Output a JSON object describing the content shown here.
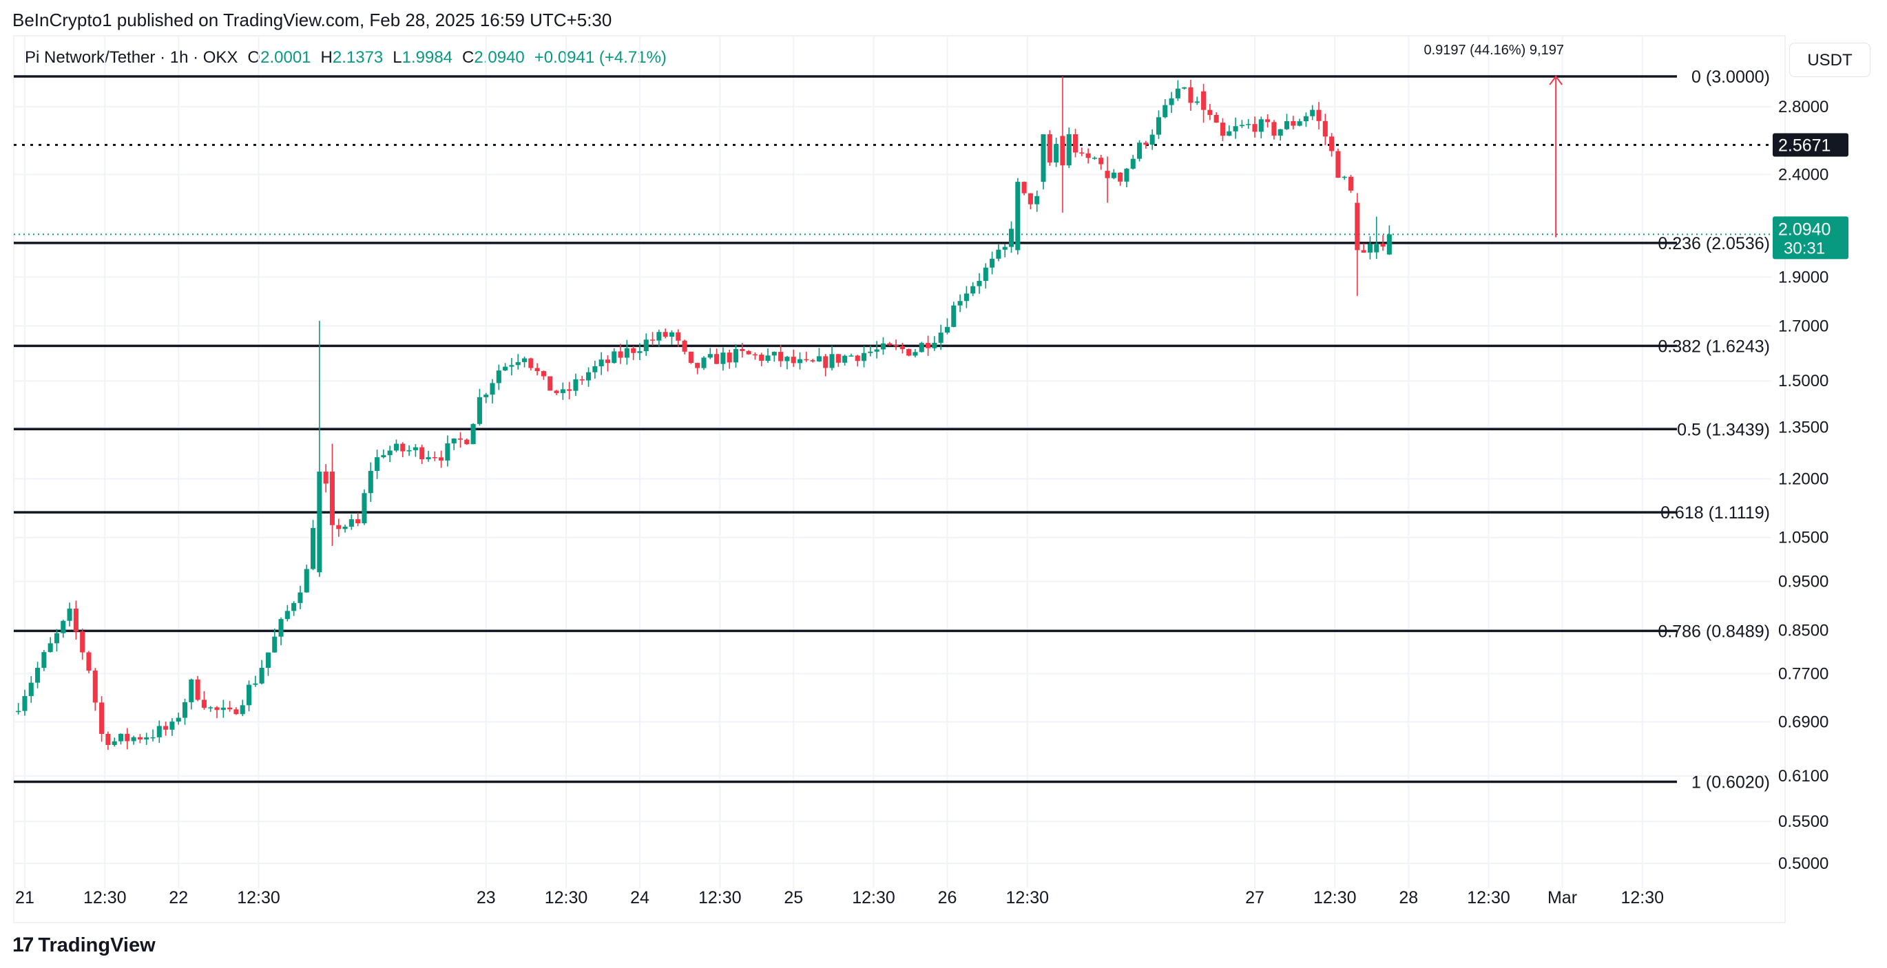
{
  "header": {
    "publisher": "BeInCrypto1 published on TradingView.com, Feb 28, 2025 16:59 UTC+5:30",
    "symbol": "Pi Network/Tether · 1h · OKX",
    "o_label": "O",
    "o_value": "2.0001",
    "h_label": "H",
    "h_value": "2.1373",
    "l_label": "L",
    "l_value": "1.9984",
    "c_label": "C",
    "c_value": "2.0940",
    "change": "+0.0941 (+4.71%)"
  },
  "currency_button": "USDT",
  "footer": {
    "brand": "TradingView",
    "logo_mark": "17"
  },
  "colors": {
    "up": "#089981",
    "down": "#f23645",
    "grid": "#f0f3fa",
    "line": "#131722",
    "last_price_bg": "#089981",
    "marker_bg": "#131722",
    "measure": "#f23645"
  },
  "chart_data": {
    "type": "candlestick",
    "scale": "log",
    "ylim": [
      0.48,
      3.25
    ],
    "y_ticks": [
      2.8,
      2.4,
      1.9,
      1.7,
      1.5,
      1.35,
      1.2,
      1.05,
      0.95,
      0.85,
      0.77,
      0.69,
      0.61,
      0.55,
      0.5
    ],
    "y_tick_labels": [
      "2.8000",
      "2.4000",
      "1.9000",
      "1.7000",
      "1.5000",
      "1.3500",
      "1.2000",
      "1.0500",
      "0.9500",
      "0.8500",
      "0.7700",
      "0.6900",
      "0.6100",
      "0.5500",
      "0.5000"
    ],
    "x_ticks": [
      {
        "label": "21",
        "t": 1
      },
      {
        "label": "12:30",
        "t": 13.5
      },
      {
        "label": "22",
        "t": 25
      },
      {
        "label": "12:30",
        "t": 37.5
      },
      {
        "label": "23",
        "t": 73
      },
      {
        "label": "12:30",
        "t": 85.5
      },
      {
        "label": "24",
        "t": 97
      },
      {
        "label": "12:30",
        "t": 109.5
      },
      {
        "label": "25",
        "t": 121
      },
      {
        "label": "12:30",
        "t": 133.5
      },
      {
        "label": "26",
        "t": 145
      },
      {
        "label": "12:30",
        "t": 157.5
      },
      {
        "label": "27",
        "t": 193
      },
      {
        "label": "12:30",
        "t": 205.5
      },
      {
        "label": "28",
        "t": 217
      },
      {
        "label": "12:30",
        "t": 229.5
      },
      {
        "label": "Mar",
        "t": 241
      },
      {
        "label": "12:30",
        "t": 253.5
      }
    ],
    "fib_levels": [
      {
        "ratio": "0",
        "value": 3.0,
        "label": "0 (3.0000)"
      },
      {
        "ratio": "0.236",
        "value": 2.0536,
        "label": "0.236 (2.0536)"
      },
      {
        "ratio": "0.382",
        "value": 1.6243,
        "label": "0.382 (1.6243)"
      },
      {
        "ratio": "0.5",
        "value": 1.3439,
        "label": "0.5 (1.3439)"
      },
      {
        "ratio": "0.618",
        "value": 1.1119,
        "label": "0.618 (1.1119)"
      },
      {
        "ratio": "0.786",
        "value": 0.8489,
        "label": "0.786 (0.8489)"
      },
      {
        "ratio": "1",
        "value": 0.602,
        "label": "1 (0.6020)"
      }
    ],
    "dotted_level": {
      "value": 2.5671,
      "label": "2.5671"
    },
    "last_price": {
      "value": 2.094,
      "label": "2.0940",
      "countdown": "30:31"
    },
    "measure": {
      "from": 2.08,
      "to": 3.0,
      "label": "0.9197 (44.16%) 9,197"
    },
    "anchors": [
      [
        0,
        0.72
      ],
      [
        4,
        0.8
      ],
      [
        8,
        0.88
      ],
      [
        11,
        0.78
      ],
      [
        13,
        0.67
      ],
      [
        15,
        0.66
      ],
      [
        20,
        0.67
      ],
      [
        24,
        0.68
      ],
      [
        27,
        0.75
      ],
      [
        30,
        0.71
      ],
      [
        33,
        0.7
      ],
      [
        37,
        0.76
      ],
      [
        41,
        0.86
      ],
      [
        45,
        0.97
      ],
      [
        47,
        1.22
      ],
      [
        50,
        1.08
      ],
      [
        53,
        1.08
      ],
      [
        55,
        1.23
      ],
      [
        57,
        1.28
      ],
      [
        61,
        1.28
      ],
      [
        66,
        1.27
      ],
      [
        70,
        1.32
      ],
      [
        72,
        1.44
      ],
      [
        75,
        1.54
      ],
      [
        79,
        1.6
      ],
      [
        82,
        1.49
      ],
      [
        85,
        1.45
      ],
      [
        89,
        1.53
      ],
      [
        94,
        1.59
      ],
      [
        98,
        1.64
      ],
      [
        102,
        1.67
      ],
      [
        105,
        1.54
      ],
      [
        109,
        1.58
      ],
      [
        113,
        1.59
      ],
      [
        118,
        1.58
      ],
      [
        123,
        1.55
      ],
      [
        128,
        1.58
      ],
      [
        132,
        1.6
      ],
      [
        136,
        1.61
      ],
      [
        140,
        1.61
      ],
      [
        144,
        1.68
      ],
      [
        147,
        1.82
      ],
      [
        150,
        1.9
      ],
      [
        154,
        2.02
      ],
      [
        156,
        2.28
      ],
      [
        159,
        2.26
      ],
      [
        163,
        2.68
      ],
      [
        166,
        2.48
      ],
      [
        169,
        2.49
      ],
      [
        172,
        2.39
      ],
      [
        175,
        2.55
      ],
      [
        178,
        2.71
      ],
      [
        181,
        2.91
      ],
      [
        185,
        2.78
      ],
      [
        188,
        2.6
      ],
      [
        190,
        2.66
      ],
      [
        193,
        2.69
      ],
      [
        196,
        2.65
      ],
      [
        199,
        2.7
      ],
      [
        202,
        2.78
      ],
      [
        204,
        2.62
      ],
      [
        206,
        2.42
      ],
      [
        208,
        2.3
      ],
      [
        210,
        2.0
      ],
      [
        212,
        2.05
      ],
      [
        214,
        2.09
      ]
    ],
    "overrides": {
      "47": {
        "o": 0.97,
        "h": 1.72,
        "l": 0.96,
        "c": 1.22
      },
      "49": {
        "o": 1.22,
        "h": 1.3,
        "l": 1.03,
        "c": 1.08
      },
      "156": {
        "o": 2.02,
        "h": 2.38,
        "l": 2.0,
        "c": 2.36
      },
      "160": {
        "o": 2.36,
        "h": 2.62,
        "l": 2.32,
        "c": 2.63
      },
      "163": {
        "o": 2.62,
        "h": 3.0,
        "l": 2.2,
        "c": 2.45
      },
      "170": {
        "o": 2.42,
        "h": 2.5,
        "l": 2.25,
        "c": 2.38
      },
      "185": {
        "o": 2.9,
        "h": 2.95,
        "l": 2.7,
        "c": 2.78
      },
      "209": {
        "o": 2.25,
        "h": 2.3,
        "l": 1.82,
        "c": 2.02
      },
      "212": {
        "o": 2.01,
        "h": 2.18,
        "l": 1.98,
        "c": 2.05
      },
      "214": {
        "o": 2.0001,
        "h": 2.1373,
        "l": 1.9984,
        "c": 2.094
      }
    }
  }
}
